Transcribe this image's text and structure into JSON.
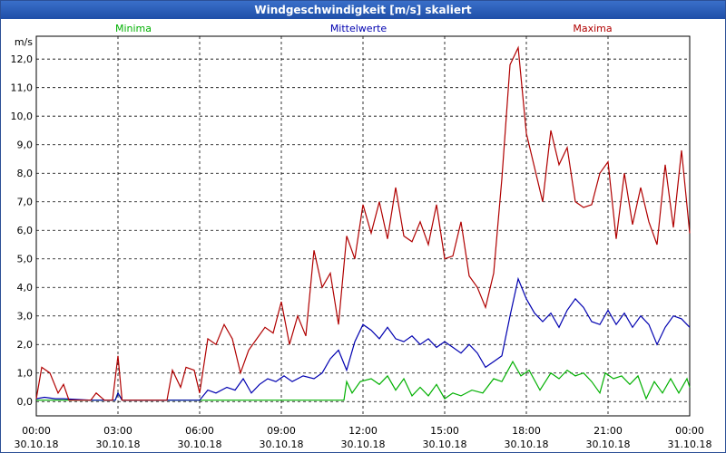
{
  "window": {
    "title": "Windgeschwindigkeit [m/s] skaliert"
  },
  "chart_data": {
    "type": "line",
    "ylabel": "m/s",
    "ylim": [
      -0.5,
      12.8
    ],
    "yticks": [
      "0,0",
      "1,0",
      "2,0",
      "3,0",
      "4,0",
      "5,0",
      "6,0",
      "7,0",
      "8,0",
      "9,0",
      "10,0",
      "11,0",
      "12,0"
    ],
    "xlim": [
      0,
      24
    ],
    "xticks": [
      {
        "time": "00:00",
        "date": "30.10.18"
      },
      {
        "time": "03:00",
        "date": "30.10.18"
      },
      {
        "time": "06:00",
        "date": "30.10.18"
      },
      {
        "time": "09:00",
        "date": "30.10.18"
      },
      {
        "time": "12:00",
        "date": "30.10.18"
      },
      {
        "time": "15:00",
        "date": "30.10.18"
      },
      {
        "time": "18:00",
        "date": "30.10.18"
      },
      {
        "time": "21:00",
        "date": "30.10.18"
      },
      {
        "time": "00:00",
        "date": "31.10.18"
      }
    ],
    "grid": true,
    "legend_position": "top",
    "series": [
      {
        "name": "Minima",
        "color": "#00b000",
        "points": [
          [
            0,
            0.05
          ],
          [
            2,
            0.05
          ],
          [
            2.9,
            0.05
          ],
          [
            3.0,
            0.3
          ],
          [
            3.15,
            0.05
          ],
          [
            6,
            0.05
          ],
          [
            10,
            0.05
          ],
          [
            11.3,
            0.05
          ],
          [
            11.4,
            0.7
          ],
          [
            11.6,
            0.3
          ],
          [
            11.9,
            0.7
          ],
          [
            12.3,
            0.8
          ],
          [
            12.6,
            0.6
          ],
          [
            12.9,
            0.9
          ],
          [
            13.2,
            0.4
          ],
          [
            13.5,
            0.8
          ],
          [
            13.8,
            0.2
          ],
          [
            14.1,
            0.5
          ],
          [
            14.4,
            0.2
          ],
          [
            14.7,
            0.6
          ],
          [
            15.0,
            0.1
          ],
          [
            15.3,
            0.3
          ],
          [
            15.6,
            0.2
          ],
          [
            16.0,
            0.4
          ],
          [
            16.4,
            0.3
          ],
          [
            16.8,
            0.8
          ],
          [
            17.1,
            0.7
          ],
          [
            17.5,
            1.4
          ],
          [
            17.8,
            0.9
          ],
          [
            18.1,
            1.1
          ],
          [
            18.5,
            0.4
          ],
          [
            18.9,
            1.0
          ],
          [
            19.2,
            0.8
          ],
          [
            19.5,
            1.1
          ],
          [
            19.8,
            0.9
          ],
          [
            20.1,
            1.0
          ],
          [
            20.4,
            0.7
          ],
          [
            20.7,
            0.3
          ],
          [
            20.9,
            1.0
          ],
          [
            21.2,
            0.8
          ],
          [
            21.5,
            0.9
          ],
          [
            21.8,
            0.6
          ],
          [
            22.1,
            0.9
          ],
          [
            22.4,
            0.1
          ],
          [
            22.7,
            0.7
          ],
          [
            23.0,
            0.3
          ],
          [
            23.3,
            0.8
          ],
          [
            23.6,
            0.3
          ],
          [
            23.9,
            0.8
          ],
          [
            24.0,
            0.5
          ]
        ]
      },
      {
        "name": "Mittelwerte",
        "color": "#0000b0",
        "points": [
          [
            0,
            0.1
          ],
          [
            0.3,
            0.15
          ],
          [
            0.7,
            0.1
          ],
          [
            1,
            0.1
          ],
          [
            2,
            0.05
          ],
          [
            2.9,
            0.05
          ],
          [
            3.0,
            0.3
          ],
          [
            3.15,
            0.05
          ],
          [
            5.5,
            0.05
          ],
          [
            6,
            0.05
          ],
          [
            6.3,
            0.4
          ],
          [
            6.6,
            0.3
          ],
          [
            7.0,
            0.5
          ],
          [
            7.3,
            0.4
          ],
          [
            7.6,
            0.8
          ],
          [
            7.9,
            0.3
          ],
          [
            8.2,
            0.6
          ],
          [
            8.5,
            0.8
          ],
          [
            8.8,
            0.7
          ],
          [
            9.1,
            0.9
          ],
          [
            9.4,
            0.7
          ],
          [
            9.8,
            0.9
          ],
          [
            10.2,
            0.8
          ],
          [
            10.5,
            1.0
          ],
          [
            10.8,
            1.5
          ],
          [
            11.1,
            1.8
          ],
          [
            11.4,
            1.1
          ],
          [
            11.7,
            2.1
          ],
          [
            12.0,
            2.7
          ],
          [
            12.3,
            2.5
          ],
          [
            12.6,
            2.2
          ],
          [
            12.9,
            2.6
          ],
          [
            13.2,
            2.2
          ],
          [
            13.5,
            2.1
          ],
          [
            13.8,
            2.3
          ],
          [
            14.1,
            2.0
          ],
          [
            14.4,
            2.2
          ],
          [
            14.7,
            1.9
          ],
          [
            15.0,
            2.1
          ],
          [
            15.3,
            1.9
          ],
          [
            15.6,
            1.7
          ],
          [
            15.9,
            2.0
          ],
          [
            16.2,
            1.7
          ],
          [
            16.5,
            1.2
          ],
          [
            16.8,
            1.4
          ],
          [
            17.1,
            1.6
          ],
          [
            17.4,
            3.0
          ],
          [
            17.7,
            4.3
          ],
          [
            18.0,
            3.6
          ],
          [
            18.3,
            3.1
          ],
          [
            18.6,
            2.8
          ],
          [
            18.9,
            3.1
          ],
          [
            19.2,
            2.6
          ],
          [
            19.5,
            3.2
          ],
          [
            19.8,
            3.6
          ],
          [
            20.1,
            3.3
          ],
          [
            20.4,
            2.8
          ],
          [
            20.7,
            2.7
          ],
          [
            21.0,
            3.2
          ],
          [
            21.3,
            2.7
          ],
          [
            21.6,
            3.1
          ],
          [
            21.9,
            2.6
          ],
          [
            22.2,
            3.0
          ],
          [
            22.5,
            2.7
          ],
          [
            22.8,
            2.0
          ],
          [
            23.1,
            2.6
          ],
          [
            23.4,
            3.0
          ],
          [
            23.7,
            2.9
          ],
          [
            24.0,
            2.6
          ]
        ]
      },
      {
        "name": "Maxima",
        "color": "#b00000",
        "points": [
          [
            0,
            0.1
          ],
          [
            0.2,
            1.2
          ],
          [
            0.5,
            1.0
          ],
          [
            0.8,
            0.3
          ],
          [
            1.0,
            0.6
          ],
          [
            1.2,
            0.05
          ],
          [
            2.0,
            0.05
          ],
          [
            2.2,
            0.3
          ],
          [
            2.5,
            0.05
          ],
          [
            2.8,
            0.05
          ],
          [
            3.0,
            1.6
          ],
          [
            3.15,
            0.05
          ],
          [
            4.8,
            0.05
          ],
          [
            5.0,
            1.1
          ],
          [
            5.3,
            0.5
          ],
          [
            5.5,
            1.2
          ],
          [
            5.8,
            1.1
          ],
          [
            6.0,
            0.3
          ],
          [
            6.3,
            2.2
          ],
          [
            6.6,
            2.0
          ],
          [
            6.9,
            2.7
          ],
          [
            7.2,
            2.2
          ],
          [
            7.5,
            1.0
          ],
          [
            7.8,
            1.8
          ],
          [
            8.1,
            2.2
          ],
          [
            8.4,
            2.6
          ],
          [
            8.7,
            2.4
          ],
          [
            9.0,
            3.5
          ],
          [
            9.3,
            2.0
          ],
          [
            9.6,
            3.0
          ],
          [
            9.9,
            2.3
          ],
          [
            10.2,
            5.3
          ],
          [
            10.5,
            4.0
          ],
          [
            10.8,
            4.5
          ],
          [
            11.1,
            2.7
          ],
          [
            11.4,
            5.8
          ],
          [
            11.7,
            5.0
          ],
          [
            12.0,
            6.9
          ],
          [
            12.3,
            5.9
          ],
          [
            12.6,
            7.0
          ],
          [
            12.9,
            5.7
          ],
          [
            13.2,
            7.5
          ],
          [
            13.5,
            5.8
          ],
          [
            13.8,
            5.6
          ],
          [
            14.1,
            6.3
          ],
          [
            14.4,
            5.5
          ],
          [
            14.7,
            6.9
          ],
          [
            15.0,
            5.0
          ],
          [
            15.3,
            5.1
          ],
          [
            15.6,
            6.3
          ],
          [
            15.9,
            4.4
          ],
          [
            16.2,
            4.0
          ],
          [
            16.5,
            3.3
          ],
          [
            16.8,
            4.5
          ],
          [
            17.1,
            7.8
          ],
          [
            17.4,
            11.8
          ],
          [
            17.7,
            12.4
          ],
          [
            18.0,
            9.4
          ],
          [
            18.3,
            8.2
          ],
          [
            18.6,
            7.0
          ],
          [
            18.9,
            9.5
          ],
          [
            19.2,
            8.3
          ],
          [
            19.5,
            8.9
          ],
          [
            19.8,
            7.0
          ],
          [
            20.1,
            6.8
          ],
          [
            20.4,
            6.9
          ],
          [
            20.7,
            8.0
          ],
          [
            21.0,
            8.4
          ],
          [
            21.3,
            5.7
          ],
          [
            21.6,
            8.0
          ],
          [
            21.9,
            6.2
          ],
          [
            22.2,
            7.5
          ],
          [
            22.5,
            6.3
          ],
          [
            22.8,
            5.5
          ],
          [
            23.1,
            8.3
          ],
          [
            23.4,
            6.1
          ],
          [
            23.7,
            8.8
          ],
          [
            24.0,
            5.9
          ]
        ]
      }
    ]
  }
}
